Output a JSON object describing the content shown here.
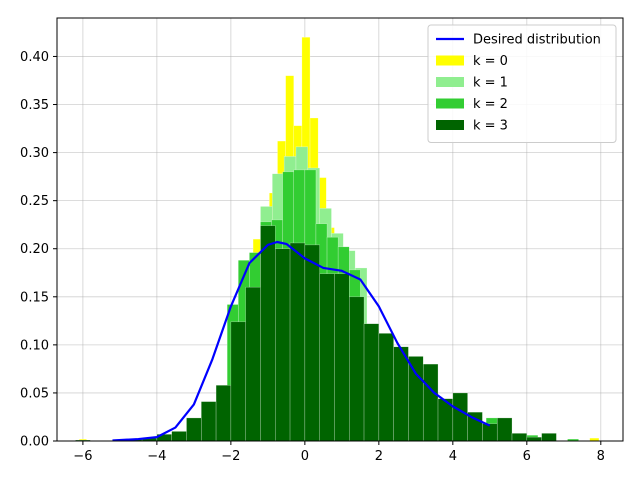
{
  "chart_data": {
    "type": "bar",
    "title": "",
    "xlabel": "",
    "ylabel": "",
    "xlim": [
      -6.7,
      8.6
    ],
    "ylim": [
      0,
      0.44
    ],
    "xticks": [
      -6,
      -4,
      -2,
      0,
      2,
      4,
      6,
      8
    ],
    "xtick_labels": [
      "−6",
      "−4",
      "−2",
      "0",
      "2",
      "4",
      "6",
      "8"
    ],
    "yticks": [
      0.0,
      0.05,
      0.1,
      0.15,
      0.2,
      0.25,
      0.3,
      0.35,
      0.4
    ],
    "ytick_labels": [
      "0.00",
      "0.05",
      "0.10",
      "0.15",
      "0.20",
      "0.25",
      "0.30",
      "0.35",
      "0.40"
    ],
    "grid": true,
    "legend_position": "top-right",
    "series": [
      {
        "name": "k = 0",
        "kind": "histogram",
        "color": "#ffff00",
        "bars": [
          {
            "x0": -1.4,
            "x1": -1.18,
            "y": 0.21
          },
          {
            "x0": -1.18,
            "x1": -0.96,
            "y": 0.225
          },
          {
            "x0": -0.96,
            "x1": -0.74,
            "y": 0.258
          },
          {
            "x0": -0.74,
            "x1": -0.52,
            "y": 0.312
          },
          {
            "x0": -0.52,
            "x1": -0.3,
            "y": 0.38
          },
          {
            "x0": -0.3,
            "x1": -0.08,
            "y": 0.328
          },
          {
            "x0": -0.08,
            "x1": 0.14,
            "y": 0.42
          },
          {
            "x0": 0.14,
            "x1": 0.36,
            "y": 0.336
          },
          {
            "x0": 0.36,
            "x1": 0.58,
            "y": 0.274
          },
          {
            "x0": 0.58,
            "x1": 0.8,
            "y": 0.222
          },
          {
            "x0": 0.8,
            "x1": 1.02,
            "y": 0.21
          },
          {
            "x0": -6.1,
            "x1": -5.9,
            "y": 0.002
          },
          {
            "x0": 7.7,
            "x1": 7.95,
            "y": 0.003
          }
        ]
      },
      {
        "name": "k = 1",
        "kind": "histogram",
        "color": "#90ee90",
        "bars": [
          {
            "x0": -1.2,
            "x1": -0.88,
            "y": 0.244
          },
          {
            "x0": -0.88,
            "x1": -0.56,
            "y": 0.278
          },
          {
            "x0": -0.56,
            "x1": -0.24,
            "y": 0.296
          },
          {
            "x0": -0.24,
            "x1": 0.08,
            "y": 0.306
          },
          {
            "x0": 0.08,
            "x1": 0.4,
            "y": 0.284
          },
          {
            "x0": 0.4,
            "x1": 0.72,
            "y": 0.242
          },
          {
            "x0": 0.72,
            "x1": 1.04,
            "y": 0.216
          },
          {
            "x0": 1.04,
            "x1": 1.36,
            "y": 0.198
          },
          {
            "x0": 1.36,
            "x1": 1.68,
            "y": 0.18
          }
        ]
      },
      {
        "name": "k = 2",
        "kind": "histogram",
        "color": "#32cd32",
        "bars": [
          {
            "x0": -2.1,
            "x1": -1.8,
            "y": 0.142
          },
          {
            "x0": -1.8,
            "x1": -1.5,
            "y": 0.188
          },
          {
            "x0": -1.5,
            "x1": -1.2,
            "y": 0.196
          },
          {
            "x0": -1.2,
            "x1": -0.9,
            "y": 0.228
          },
          {
            "x0": -0.9,
            "x1": -0.6,
            "y": 0.23
          },
          {
            "x0": -0.6,
            "x1": -0.3,
            "y": 0.28
          },
          {
            "x0": -0.3,
            "x1": 0.0,
            "y": 0.282
          },
          {
            "x0": 0.0,
            "x1": 0.3,
            "y": 0.282
          },
          {
            "x0": 0.3,
            "x1": 0.6,
            "y": 0.226
          },
          {
            "x0": 0.6,
            "x1": 0.9,
            "y": 0.212
          },
          {
            "x0": 0.9,
            "x1": 1.2,
            "y": 0.202
          },
          {
            "x0": 1.2,
            "x1": 1.5,
            "y": 0.178
          },
          {
            "x0": 4.9,
            "x1": 5.2,
            "y": 0.024
          },
          {
            "x0": 6.0,
            "x1": 6.3,
            "y": 0.006
          },
          {
            "x0": 7.1,
            "x1": 7.4,
            "y": 0.002
          }
        ]
      },
      {
        "name": "k = 3",
        "kind": "histogram",
        "color": "#006400",
        "bars": [
          {
            "x0": -6.2,
            "x1": -5.8,
            "y": 0.001
          },
          {
            "x0": -5.2,
            "x1": -4.8,
            "y": 0.001
          },
          {
            "x0": -4.8,
            "x1": -4.4,
            "y": 0.002
          },
          {
            "x0": -4.4,
            "x1": -4.0,
            "y": 0.003
          },
          {
            "x0": -4.0,
            "x1": -3.6,
            "y": 0.007
          },
          {
            "x0": -3.6,
            "x1": -3.2,
            "y": 0.01
          },
          {
            "x0": -3.2,
            "x1": -2.8,
            "y": 0.024
          },
          {
            "x0": -2.8,
            "x1": -2.4,
            "y": 0.041
          },
          {
            "x0": -2.4,
            "x1": -2.0,
            "y": 0.058
          },
          {
            "x0": -2.0,
            "x1": -1.6,
            "y": 0.124
          },
          {
            "x0": -1.6,
            "x1": -1.2,
            "y": 0.16
          },
          {
            "x0": -1.2,
            "x1": -0.8,
            "y": 0.224
          },
          {
            "x0": -0.8,
            "x1": -0.4,
            "y": 0.2
          },
          {
            "x0": -0.4,
            "x1": 0.0,
            "y": 0.206
          },
          {
            "x0": 0.0,
            "x1": 0.4,
            "y": 0.204
          },
          {
            "x0": 0.4,
            "x1": 0.8,
            "y": 0.174
          },
          {
            "x0": 0.8,
            "x1": 1.2,
            "y": 0.174
          },
          {
            "x0": 1.2,
            "x1": 1.6,
            "y": 0.15
          },
          {
            "x0": 1.6,
            "x1": 2.0,
            "y": 0.122
          },
          {
            "x0": 2.0,
            "x1": 2.4,
            "y": 0.112
          },
          {
            "x0": 2.4,
            "x1": 2.8,
            "y": 0.098
          },
          {
            "x0": 2.8,
            "x1": 3.2,
            "y": 0.088
          },
          {
            "x0": 3.2,
            "x1": 3.6,
            "y": 0.08
          },
          {
            "x0": 3.6,
            "x1": 4.0,
            "y": 0.044
          },
          {
            "x0": 4.0,
            "x1": 4.4,
            "y": 0.05
          },
          {
            "x0": 4.4,
            "x1": 4.8,
            "y": 0.03
          },
          {
            "x0": 4.8,
            "x1": 5.2,
            "y": 0.018
          },
          {
            "x0": 5.2,
            "x1": 5.6,
            "y": 0.024
          },
          {
            "x0": 5.6,
            "x1": 6.0,
            "y": 0.008
          },
          {
            "x0": 6.0,
            "x1": 6.4,
            "y": 0.004
          },
          {
            "x0": 6.4,
            "x1": 6.8,
            "y": 0.008
          }
        ]
      },
      {
        "name": "Desired distribution",
        "kind": "line",
        "color": "#0000ff",
        "x": [
          -5.2,
          -4.5,
          -4.0,
          -3.5,
          -3.0,
          -2.5,
          -2.0,
          -1.5,
          -1.0,
          -0.75,
          -0.5,
          0.0,
          0.5,
          1.0,
          1.5,
          2.0,
          2.5,
          3.0,
          3.5,
          4.0,
          4.5,
          5.0
        ],
        "y": [
          0.0005,
          0.002,
          0.004,
          0.014,
          0.038,
          0.085,
          0.14,
          0.185,
          0.204,
          0.207,
          0.205,
          0.19,
          0.18,
          0.177,
          0.168,
          0.14,
          0.102,
          0.07,
          0.05,
          0.036,
          0.025,
          0.016
        ]
      }
    ]
  }
}
